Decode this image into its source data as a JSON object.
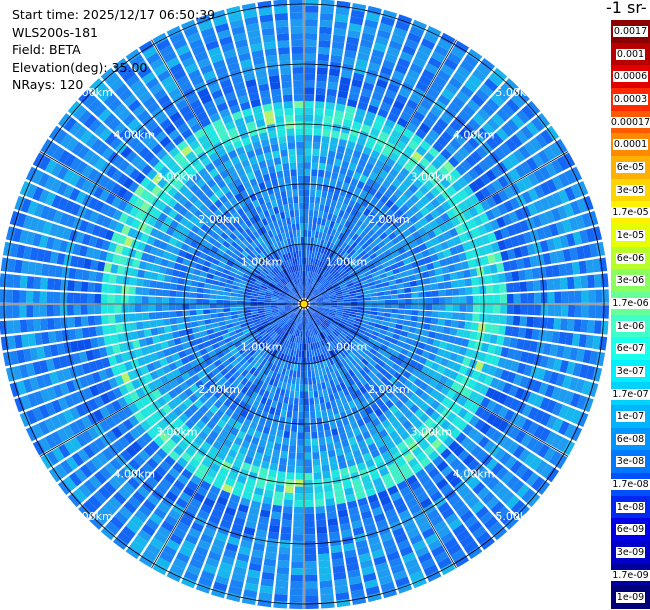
{
  "header": {
    "start_time": "Start time: 2025/12/17 06:50:39",
    "device": "WLS200s-181",
    "field": "Field: BETA",
    "elevation": "Elevation(deg): 35.00",
    "nrays": "NRays: 120"
  },
  "colorbar": {
    "unit_text": "-1 sr-",
    "labels": [
      "0.0017",
      "0.001",
      "0.0006",
      "0.0003",
      "0.00017",
      "0.0001",
      "6e-05",
      "3e-05",
      "1.7e-05",
      "1e-05",
      "6e-06",
      "3e-06",
      "1.7e-06",
      "1e-06",
      "6e-07",
      "3e-07",
      "1.7e-07",
      "1e-07",
      "6e-08",
      "3e-08",
      "1.7e-08",
      "1e-08",
      "6e-09",
      "3e-09",
      "1.7e-09",
      "1e-09"
    ],
    "colors": [
      "#8b0000",
      "#b80000",
      "#e00000",
      "#ff2a00",
      "#ff5a00",
      "#ff8a00",
      "#ffb000",
      "#ffd500",
      "#fff200",
      "#e6ff00",
      "#b8ff2a",
      "#8cff60",
      "#66ff99",
      "#40ffc8",
      "#1affea",
      "#00f0ff",
      "#00d2ff",
      "#00b4ff",
      "#0096ff",
      "#0078ff",
      "#0050ff",
      "#0028f0",
      "#0000e6",
      "#0000c8",
      "#0000a0",
      "#000078"
    ]
  },
  "range_rings": {
    "labels": [
      "1.00km",
      "2.00km",
      "3.00km",
      "4.00km",
      "5.00km"
    ]
  }
}
